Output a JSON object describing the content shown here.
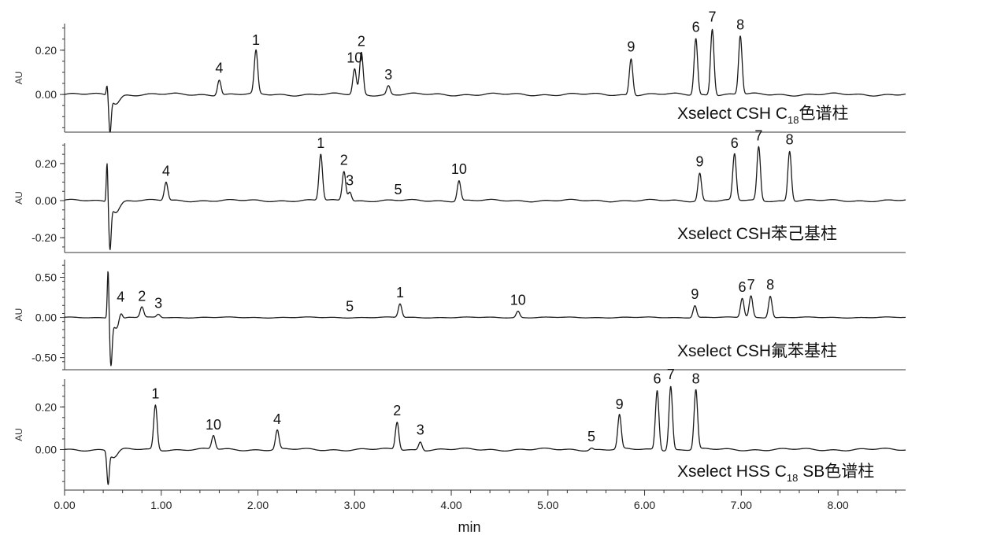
{
  "chart_data": {
    "type": "line",
    "xlabel": "min",
    "xlim": [
      0,
      8.7
    ],
    "x_ticks": [
      "0.00",
      "1.00",
      "2.00",
      "3.00",
      "4.00",
      "5.00",
      "6.00",
      "7.00",
      "8.00"
    ],
    "x_tick_values": [
      0,
      1,
      2,
      3,
      4,
      5,
      6,
      7,
      8
    ],
    "panels": [
      {
        "id": "p1",
        "title": {
          "pre": "Xselect CSH C",
          "sub": "18",
          "post": "色谱柱"
        },
        "ylabel": "AU",
        "ylim": [
          -0.17,
          0.32
        ],
        "y_ticks": [
          "0.00",
          "0.20"
        ],
        "y_tick_values": [
          0.0,
          0.2
        ],
        "disturbance": {
          "t": 0.44,
          "amp": 0.05,
          "neg": -0.16
        },
        "peaks": [
          {
            "label": "4",
            "t": 1.6,
            "h": 0.07
          },
          {
            "label": "1",
            "t": 1.98,
            "h": 0.195
          },
          {
            "label": "10",
            "t": 3.0,
            "h": 0.115
          },
          {
            "label": "2",
            "t": 3.07,
            "h": 0.19
          },
          {
            "label": "3",
            "t": 3.35,
            "h": 0.04
          },
          {
            "label": "9",
            "t": 5.86,
            "h": 0.165
          },
          {
            "label": "6",
            "t": 6.53,
            "h": 0.255
          },
          {
            "label": "7",
            "t": 6.7,
            "h": 0.3
          },
          {
            "label": "8",
            "t": 6.99,
            "h": 0.265
          }
        ]
      },
      {
        "id": "p2",
        "title": {
          "pre": "Xselect CSH苯己基柱",
          "sub": "",
          "post": ""
        },
        "ylabel": "AU",
        "ylim": [
          -0.28,
          0.31
        ],
        "y_ticks": [
          "-0.20",
          "0.00",
          "0.20"
        ],
        "y_tick_values": [
          -0.2,
          0.0,
          0.2
        ],
        "disturbance": {
          "t": 0.44,
          "amp": 0.22,
          "neg": -0.24
        },
        "peaks": [
          {
            "label": "4",
            "t": 1.05,
            "h": 0.1
          },
          {
            "label": "1",
            "t": 2.65,
            "h": 0.25
          },
          {
            "label": "2",
            "t": 2.89,
            "h": 0.16
          },
          {
            "label": "3",
            "t": 2.95,
            "h": 0.05
          },
          {
            "label": "5",
            "t": 3.45,
            "h": 0.0
          },
          {
            "label": "10",
            "t": 4.08,
            "h": 0.11
          },
          {
            "label": "9",
            "t": 6.57,
            "h": 0.15
          },
          {
            "label": "6",
            "t": 6.93,
            "h": 0.25
          },
          {
            "label": "7",
            "t": 7.18,
            "h": 0.29
          },
          {
            "label": "8",
            "t": 7.5,
            "h": 0.27
          }
        ]
      },
      {
        "id": "p3",
        "title": {
          "pre": "Xselect CSH氟苯基柱",
          "sub": "",
          "post": ""
        },
        "ylabel": "AU",
        "ylim": [
          -0.65,
          0.72
        ],
        "y_ticks": [
          "-0.50",
          "0.00",
          "0.50"
        ],
        "y_tick_values": [
          -0.5,
          0.0,
          0.5
        ],
        "disturbance": {
          "t": 0.45,
          "amp": 0.62,
          "neg": -0.55
        },
        "peaks": [
          {
            "label": "4",
            "t": 0.58,
            "h": 0.12
          },
          {
            "label": "2",
            "t": 0.8,
            "h": 0.13
          },
          {
            "label": "3",
            "t": 0.97,
            "h": 0.04
          },
          {
            "label": "5",
            "t": 2.95,
            "h": 0.0
          },
          {
            "label": "1",
            "t": 3.47,
            "h": 0.17
          },
          {
            "label": "10",
            "t": 4.69,
            "h": 0.08
          },
          {
            "label": "9",
            "t": 6.52,
            "h": 0.15
          },
          {
            "label": "6",
            "t": 7.01,
            "h": 0.24
          },
          {
            "label": "7",
            "t": 7.1,
            "h": 0.27
          },
          {
            "label": "8",
            "t": 7.3,
            "h": 0.27
          }
        ]
      },
      {
        "id": "p4",
        "title": {
          "pre": "Xselect HSS C",
          "sub": "18",
          "post": " SB色谱柱"
        },
        "ylabel": "AU",
        "ylim": [
          -0.19,
          0.33
        ],
        "y_ticks": [
          "0.00",
          "0.20"
        ],
        "y_tick_values": [
          0.0,
          0.2
        ],
        "disturbance": {
          "t": 0.42,
          "amp": 0.0,
          "neg": -0.15
        },
        "peaks": [
          {
            "label": "1",
            "t": 0.94,
            "h": 0.21
          },
          {
            "label": "10",
            "t": 1.54,
            "h": 0.065
          },
          {
            "label": "4",
            "t": 2.2,
            "h": 0.09
          },
          {
            "label": "2",
            "t": 3.44,
            "h": 0.13
          },
          {
            "label": "3",
            "t": 3.68,
            "h": 0.04
          },
          {
            "label": "5",
            "t": 5.45,
            "h": 0.01
          },
          {
            "label": "9",
            "t": 5.74,
            "h": 0.16
          },
          {
            "label": "6",
            "t": 6.13,
            "h": 0.28
          },
          {
            "label": "7",
            "t": 6.27,
            "h": 0.3
          },
          {
            "label": "8",
            "t": 6.53,
            "h": 0.28
          }
        ]
      }
    ]
  }
}
